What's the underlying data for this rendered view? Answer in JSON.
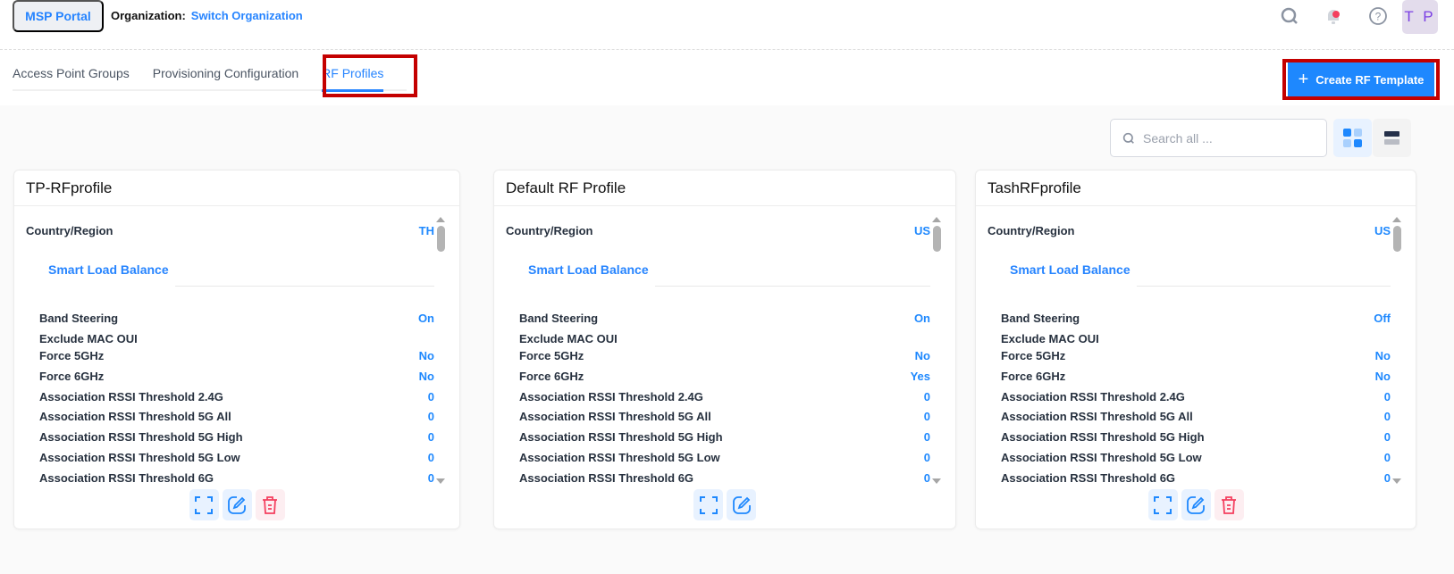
{
  "header": {
    "portal_label": "MSP Portal",
    "org_label": "Organization:",
    "switch_org": "Switch Organization",
    "avatar": "T P",
    "icons": [
      "search-icon",
      "bell-icon",
      "help-icon"
    ],
    "notification_dot_color": "#f43f5e"
  },
  "tabs": [
    {
      "label": "Access Point Groups",
      "active": false
    },
    {
      "label": "Provisioning Configuration",
      "active": false
    },
    {
      "label": "RF Profiles",
      "active": true
    }
  ],
  "toolbar": {
    "create_label": "Create RF Template",
    "search_placeholder": "Search all ...",
    "search_value": "",
    "view_mode": "grid"
  },
  "colors": {
    "accent": "#1e88fe",
    "highlight": "#c40000",
    "danger": "#f43f5e"
  },
  "common": {
    "country_label": "Country/Region",
    "section_label": "Smart Load Balance",
    "row_labels": [
      "Band Steering",
      "Exclude MAC OUI",
      "Force 5GHz",
      "Force 6GHz",
      "Association RSSI Threshold 2.4G",
      "Association RSSI Threshold 5G All",
      "Association RSSI Threshold 5G High",
      "Association RSSI Threshold 5G Low",
      "Association RSSI Threshold 6G"
    ]
  },
  "cards": [
    {
      "title": "TP-RFprofile",
      "country": "TH",
      "values": [
        "On",
        "",
        "No",
        "No",
        "0",
        "0",
        "0",
        "0",
        "0"
      ],
      "can_delete": true
    },
    {
      "title": "Default RF Profile",
      "country": "US",
      "values": [
        "On",
        "",
        "No",
        "Yes",
        "0",
        "0",
        "0",
        "0",
        "0"
      ],
      "can_delete": false
    },
    {
      "title": "TashRFprofile",
      "country": "US",
      "values": [
        "Off",
        "",
        "No",
        "No",
        "0",
        "0",
        "0",
        "0",
        "0"
      ],
      "can_delete": true
    }
  ]
}
